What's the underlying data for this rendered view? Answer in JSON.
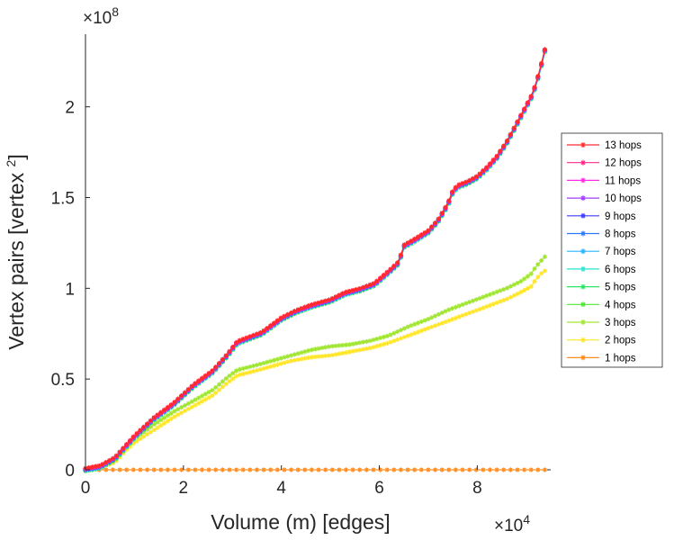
{
  "chart_data": {
    "type": "line",
    "title": "",
    "xlabel": "Volume (m) [edges]",
    "ylabel": "Vertex pairs [vertex ",
    "ylabel_sup": "2",
    "ylabel_close": "]",
    "x_exponent_base": "×10",
    "x_exponent": "4",
    "y_exponent_base": "×10",
    "y_exponent": "8",
    "xlim": [
      0,
      95000
    ],
    "ylim": [
      0,
      240000000
    ],
    "x_ticks": [
      {
        "value": 0,
        "label": "0"
      },
      {
        "value": 20000,
        "label": "2"
      },
      {
        "value": 40000,
        "label": "4"
      },
      {
        "value": 60000,
        "label": "6"
      },
      {
        "value": 80000,
        "label": "8"
      }
    ],
    "y_ticks": [
      {
        "value": 0,
        "label": "0"
      },
      {
        "value": 50000000,
        "label": "0.5"
      },
      {
        "value": 100000000,
        "label": "1"
      },
      {
        "value": 150000000,
        "label": "1.5"
      },
      {
        "value": 200000000,
        "label": "2"
      }
    ],
    "grid": false,
    "legend_position": "right",
    "marker": "asterisk",
    "series": [
      {
        "name": "13 hops",
        "color": "#ff2a2a",
        "curve": "upper"
      },
      {
        "name": "12 hops",
        "color": "#ff2a8c",
        "curve": "upper"
      },
      {
        "name": "11 hops",
        "color": "#ff2ae6",
        "curve": "upper"
      },
      {
        "name": "10 hops",
        "color": "#a23cff",
        "curve": "upper"
      },
      {
        "name": "9 hops",
        "color": "#3c3cff",
        "curve": "upper"
      },
      {
        "name": "8 hops",
        "color": "#2a78ff",
        "curve": "upper"
      },
      {
        "name": "7 hops",
        "color": "#2ab4ff",
        "curve": "upper"
      },
      {
        "name": "6 hops",
        "color": "#2ae6d2",
        "curve": "upper"
      },
      {
        "name": "5 hops",
        "color": "#2ae664",
        "curve": "upper"
      },
      {
        "name": "4 hops",
        "color": "#50e632",
        "curve": "upper"
      },
      {
        "name": "3 hops",
        "color": "#a0e632",
        "curve": "middle"
      },
      {
        "name": "2 hops",
        "color": "#ffe62a",
        "curve": "lower"
      },
      {
        "name": "1 hops",
        "color": "#ff8c1e",
        "curve": "zero"
      }
    ],
    "curves": {
      "upper": {
        "x": [
          0,
          3000,
          6000,
          8000,
          10000,
          14000,
          18000,
          22000,
          26000,
          29000,
          31000,
          33000,
          36000,
          38000,
          40000,
          43000,
          46000,
          50000,
          53000,
          56000,
          59000,
          62000,
          64000,
          65000,
          67000,
          70000,
          72000,
          74000,
          75000,
          76000,
          78000,
          80000,
          82000,
          84000,
          86000,
          88000,
          90000,
          91000,
          92000,
          93000,
          94000
        ],
        "y": [
          0,
          1500000,
          6000000,
          12000000,
          18000000,
          28000000,
          36000000,
          46000000,
          54000000,
          63000000,
          70000000,
          72000000,
          75000000,
          79000000,
          83000000,
          87000000,
          90000000,
          93000000,
          97000000,
          99000000,
          102000000,
          109000000,
          114000000,
          123000000,
          126000000,
          131000000,
          137000000,
          146000000,
          153000000,
          156000000,
          158000000,
          161000000,
          166000000,
          172000000,
          180000000,
          190000000,
          200000000,
          205000000,
          212000000,
          222000000,
          233000000
        ]
      },
      "middle": {
        "x": [
          0,
          3000,
          6000,
          8000,
          10000,
          14000,
          18000,
          22000,
          26000,
          29000,
          31000,
          34000,
          38000,
          42000,
          46000,
          50000,
          54000,
          58000,
          62000,
          66000,
          70000,
          74000,
          78000,
          82000,
          86000,
          89000,
          91000,
          92000,
          93000,
          94000
        ],
        "y": [
          0,
          1500000,
          5000000,
          11000000,
          17000000,
          25000000,
          32000000,
          38000000,
          44000000,
          51000000,
          55000000,
          57000000,
          60000000,
          63000000,
          66000000,
          68000000,
          69000000,
          71000000,
          74000000,
          79000000,
          83000000,
          88000000,
          92000000,
          96000000,
          100000000,
          104000000,
          108000000,
          112000000,
          115000000,
          118000000
        ]
      },
      "lower": {
        "x": [
          0,
          3000,
          6000,
          8000,
          10000,
          14000,
          18000,
          22000,
          26000,
          29000,
          31000,
          34000,
          38000,
          42000,
          46000,
          50000,
          54000,
          58000,
          62000,
          66000,
          70000,
          74000,
          78000,
          82000,
          86000,
          89000,
          91000,
          92000,
          93000,
          94000
        ],
        "y": [
          0,
          1200000,
          4000000,
          10000000,
          15000000,
          22000000,
          29000000,
          35000000,
          41000000,
          48000000,
          52000000,
          54000000,
          57000000,
          60000000,
          62000000,
          63000000,
          65000000,
          67000000,
          70000000,
          74000000,
          78000000,
          82000000,
          86000000,
          90000000,
          94000000,
          98000000,
          101000000,
          105000000,
          108000000,
          110000000
        ]
      },
      "zero": {
        "x": [
          0,
          94000
        ],
        "y": [
          0,
          0
        ]
      }
    }
  }
}
